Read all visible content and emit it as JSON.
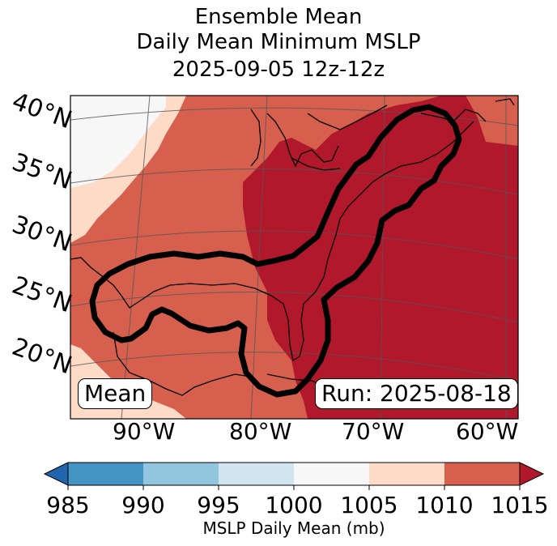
{
  "title": {
    "line1": "Ensemble Mean",
    "line2": "Daily Mean Minimum MSLP",
    "line3": "2025-09-05 12z-12z"
  },
  "map": {
    "latitude_labels": [
      "40°N",
      "35°N",
      "30°N",
      "25°N",
      "20°N"
    ],
    "longitude_labels": [
      "90°W",
      "80°W",
      "70°W",
      "60°W"
    ],
    "mean_label": "Mean",
    "run_label": "Run: 2025-08-18",
    "contour_color": "#000000"
  },
  "colorbar": {
    "ticks": [
      "985",
      "990",
      "995",
      "1000",
      "1005",
      "1010",
      "1015"
    ],
    "label": "MSLP Daily Mean (mb)",
    "colors": [
      "#2166ac",
      "#4393c3",
      "#92c5de",
      "#d1e5f0",
      "#f7f7f7",
      "#fddbc7",
      "#d6604d",
      "#b2182b"
    ]
  }
}
